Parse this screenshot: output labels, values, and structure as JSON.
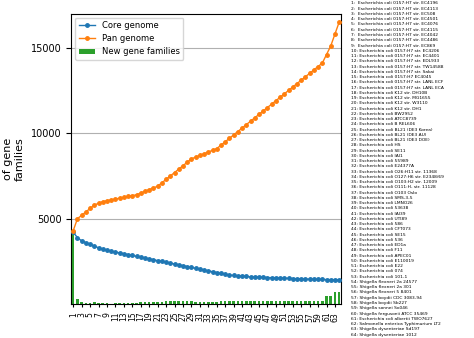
{
  "chart_data": {
    "type": "line",
    "y_label": "Number\nof gene\nfamilies",
    "x": [
      1,
      2,
      3,
      4,
      5,
      6,
      7,
      8,
      9,
      10,
      11,
      12,
      13,
      14,
      15,
      16,
      17,
      18,
      19,
      20,
      21,
      22,
      23,
      24,
      25,
      26,
      27,
      28,
      29,
      30,
      31,
      32,
      33,
      34,
      35,
      36,
      37,
      38,
      39,
      40,
      41,
      42,
      43,
      44,
      45,
      46,
      47,
      48,
      49,
      50,
      51,
      52,
      53,
      54,
      55,
      56,
      57,
      58,
      59,
      60,
      61,
      62,
      63,
      64
    ],
    "series": [
      {
        "name": "Core genome",
        "type": "line",
        "marker": "o",
        "values": [
          4200,
          3900,
          3700,
          3600,
          3500,
          3400,
          3300,
          3200,
          3150,
          3100,
          3050,
          3000,
          2950,
          2900,
          2850,
          2800,
          2750,
          2700,
          2650,
          2600,
          2550,
          2500,
          2450,
          2400,
          2350,
          2300,
          2250,
          2200,
          2150,
          2100,
          2050,
          2000,
          1950,
          1900,
          1850,
          1800,
          1750,
          1700,
          1680,
          1660,
          1640,
          1620,
          1600,
          1590,
          1580,
          1570,
          1560,
          1550,
          1540,
          1530,
          1520,
          1510,
          1500,
          1490,
          1480,
          1470,
          1460,
          1455,
          1450,
          1445,
          1440,
          1435,
          1430,
          1425
        ]
      },
      {
        "name": "Pan genome",
        "type": "line",
        "marker": "o",
        "values": [
          4300,
          5000,
          5200,
          5400,
          5600,
          5800,
          5900,
          6000,
          6050,
          6100,
          6150,
          6200,
          6250,
          6300,
          6350,
          6400,
          6500,
          6600,
          6700,
          6800,
          6900,
          7100,
          7300,
          7500,
          7700,
          7900,
          8100,
          8300,
          8500,
          8600,
          8700,
          8800,
          8900,
          9000,
          9100,
          9300,
          9500,
          9700,
          9900,
          10100,
          10300,
          10500,
          10700,
          10900,
          11100,
          11300,
          11500,
          11700,
          11900,
          12100,
          12300,
          12500,
          12700,
          12900,
          13100,
          13300,
          13500,
          13700,
          13900,
          14100,
          14600,
          15100,
          15800,
          16500
        ]
      },
      {
        "name": "New gene families",
        "type": "bar",
        "values": [
          4300,
          300,
          150,
          80,
          50,
          100,
          80,
          70,
          50,
          40,
          50,
          45,
          50,
          50,
          45,
          50,
          100,
          100,
          100,
          100,
          100,
          150,
          200,
          200,
          200,
          200,
          200,
          200,
          200,
          100,
          100,
          100,
          100,
          100,
          100,
          200,
          200,
          200,
          200,
          200,
          200,
          200,
          200,
          200,
          200,
          200,
          200,
          200,
          200,
          200,
          200,
          200,
          200,
          200,
          200,
          200,
          200,
          200,
          200,
          200,
          500,
          500,
          700,
          700
        ]
      }
    ],
    "xlim": [
      0.5,
      64.5
    ],
    "xticks": [
      1,
      3,
      5,
      7,
      9,
      11,
      13,
      15,
      17,
      19,
      21,
      23,
      25,
      27,
      29,
      31,
      33,
      35,
      37,
      39,
      41,
      43,
      45,
      47,
      49,
      51,
      53,
      55,
      57,
      59,
      61,
      63
    ],
    "ylim": [
      0,
      17000
    ],
    "yticks": [
      5000,
      10000,
      15000
    ],
    "grid": "y",
    "legend": "upper left",
    "annotations": [
      "1:  Escherichia coli 0157:H7 str. EC4196",
      "2:  Escherichia coli 0157:H7 str. EC4113",
      "3:  Escherichia coli 0157:H7 str. EC508",
      "4:  Escherichia coli 0157:H7 str. EC4501",
      "5:  Escherichia coli 0157:H7 str. EC4076",
      "6:  Escherichia coli 0157:H7 str. EC4115",
      "7:  Escherichia coli 0157:H7 str. EC4042",
      "8:  Escherichia coli 0157:H7 str. EC4486",
      "9:  Escherichia coli 0157:H7 str. EC869",
      "10: Escherichia coli 0157:H7 str. EC4206",
      "11: Escherichia coli 0157:H7 str. EC4401",
      "12: Escherichia coli 0157:H7 str. EDL933",
      "13: Escherichia coli 0157:H7 str. TW14588",
      "14: Escherichia coli 0157:H7 str. Sakai",
      "15: Escherichia coli 0157:H7 EC4045",
      "16: Escherichia coli 0157:H7 str. LANL ECF",
      "17: Escherichia coli 0157:H7 str. LANL ECA",
      "18: Escherichia coli K12 str. DH10B",
      "19: Escherichia coli K12 str. MG1655",
      "20: Escherichia coli K12 str. W3110",
      "21: Escherichia coli K12 str. DH1",
      "22: Escherichia coli BW2952",
      "23: Escherichia coli ATCC8739",
      "24: Escherichia coli B REL606",
      "25: Escherichia coli BL21 (DE3 Korea)",
      "26: Escherichia coli BL21 (DE3 AU)",
      "27: Escherichia coli BL21 (DE3 DOE)",
      "28: Escherichia coli HS",
      "29: Escherichia coli SE11",
      "30: Escherichia coli IAI1",
      "31: Escherichia coli 55989",
      "32: Escherichia coli E24377A",
      "33: Escherichia coli O26:H11 str. 11368",
      "34: Escherichia coli O127:H6 str. E2348/69",
      "35: Escherichia coli O103:H2 str. 12009",
      "36: Escherichia coli O111:H- str. 11128",
      "37: Escherichia coli O103 Oslo",
      "38: Escherichia coli SMS-3-5",
      "39: Escherichia coli LMNO26",
      "40: Escherichia coli 53638",
      "41: Escherichia coli IAI39",
      "42: Escherichia coli UTI89",
      "43: Escherichia coli 586",
      "44: Escherichia coli CFT073",
      "45: Escherichia coli SE15",
      "46: Escherichia coli 536",
      "47: Escherichia coli ED1a",
      "48: Escherichia coli F11",
      "49: Escherichia coli APEC01",
      "50: Escherichia coli E110019",
      "51: Escherichia coli E22",
      "52: Escherichia coli 074",
      "53: Escherichia coli 101-1",
      "54: Shigella flexneri 2a 24577",
      "55: Shigella flexneri 2a 301",
      "56: Shigella flexneri 5 8401",
      "57: Shigella boydii CDC 3083-94",
      "58: Shigella boydii Sb227",
      "59: Shigella sonnei So046",
      "60: Shigella fergusonii ATCC 35469",
      "61: Escherichia coli albertii TWO7627",
      "62: Salmonella enterica Typhimurium LT2",
      "63: Shigella dysenteriae Sd197",
      "64: Shigella dysenteriae 1012"
    ]
  }
}
